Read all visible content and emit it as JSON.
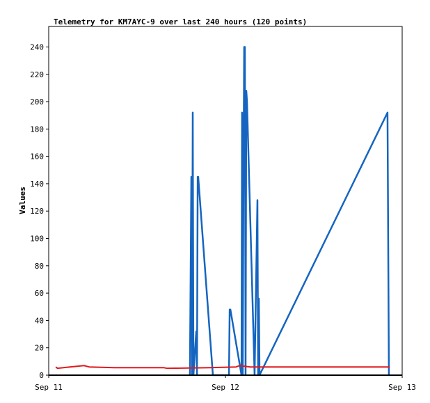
{
  "chart_data": {
    "type": "line",
    "title": "Telemetry for KM7AYC-9 over last 240 hours (120 points)",
    "y_label": "Values",
    "xlim": [
      11,
      13
    ],
    "xticks": [
      {
        "value": 11,
        "label": "Sep 11"
      },
      {
        "value": 12,
        "label": "Sep 12"
      },
      {
        "value": 13,
        "label": "Sep 13"
      }
    ],
    "ylim": [
      0,
      255
    ],
    "yticks": [
      0,
      20,
      40,
      60,
      80,
      100,
      120,
      140,
      160,
      180,
      200,
      220,
      240
    ],
    "series": [
      {
        "color": "#1565c0",
        "x": [
          11.799,
          11.803,
          11.807,
          11.811,
          11.815,
          11.819,
          11.835,
          11.839,
          11.843,
          11.846,
          11.929,
          12.02,
          12.024,
          12.028,
          12.091,
          12.094,
          12.098,
          12.102,
          12.106,
          12.11,
          12.114,
          12.118,
          12.122,
          12.165,
          12.181,
          12.185,
          12.189,
          12.193,
          12.917,
          12.921,
          12.925
        ],
        "values": [
          0,
          73,
          145,
          0,
          192,
          0,
          32,
          0,
          145,
          145,
          0,
          0,
          48,
          48,
          0,
          192,
          0,
          145,
          240,
          240,
          0,
          208,
          200,
          0,
          128,
          0,
          56,
          0,
          192,
          97,
          0
        ]
      },
      {
        "color": "#e0191c",
        "x": [
          11.04,
          11.05,
          11.12,
          11.2,
          11.23,
          11.37,
          11.65,
          11.67,
          11.91,
          12.06,
          12.08,
          12.14,
          12.93
        ],
        "values": [
          6,
          5,
          6,
          7,
          6,
          5.5,
          5.5,
          5,
          5.5,
          6,
          7,
          6,
          6
        ]
      }
    ]
  }
}
